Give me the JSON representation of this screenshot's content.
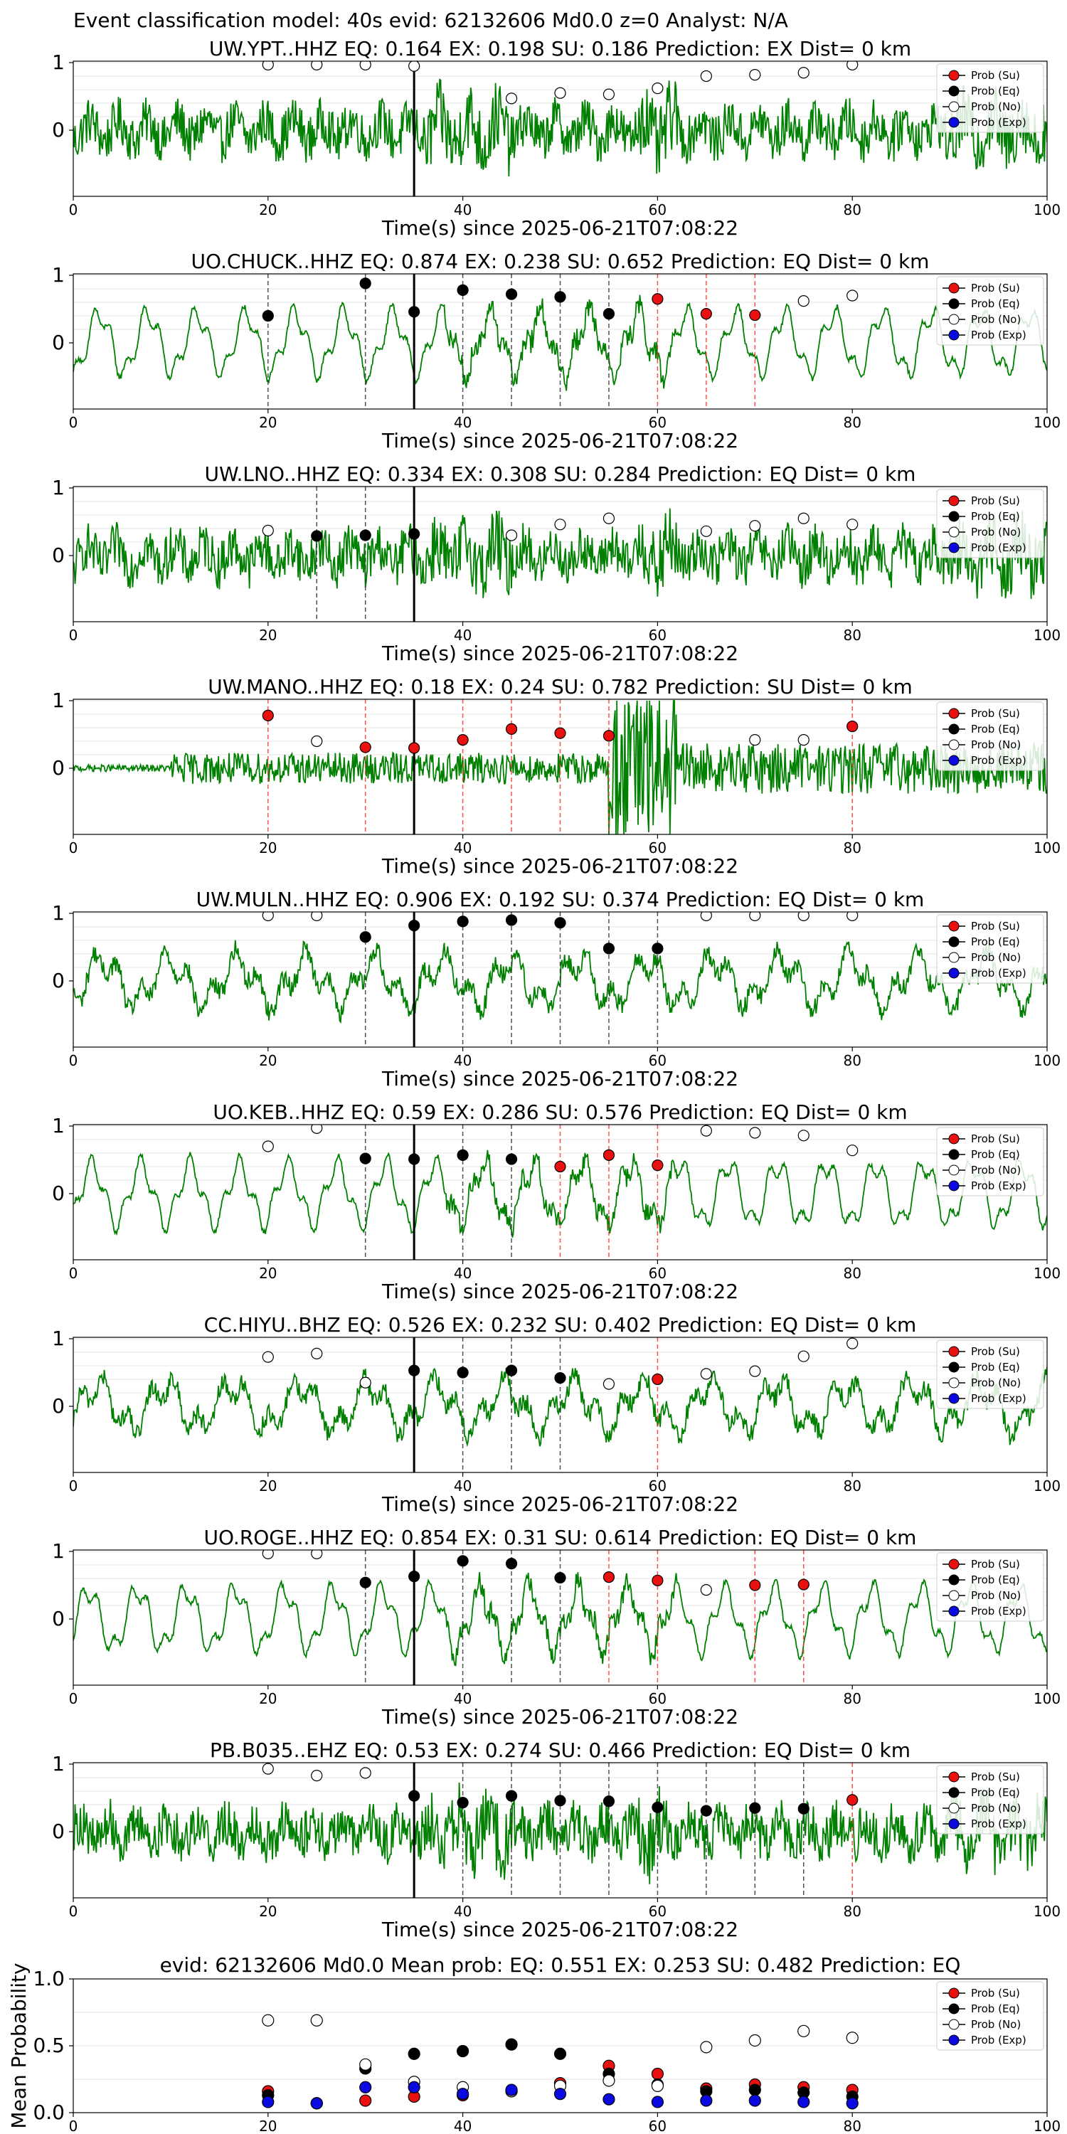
{
  "suptitle": "Event classification model: 40s evid: 62132606 Md0.0 z=0 Analyst: N/A",
  "colors": {
    "trace": "#008000",
    "su": "#e8110f",
    "eq": "#000000",
    "no": "#ffffff",
    "exp": "#0a0ae0",
    "arrival": "#000000"
  },
  "legend_labels": [
    "Prob (Su)",
    "Prob (Eq)",
    "Prob (No)",
    "Prob (Exp)"
  ],
  "chart_data": [
    {
      "type": "line",
      "station": "UW.YPT..HHZ",
      "title": "UW.YPT..HHZ   EQ: 0.164  EX: 0.198  SU: 0.186   Prediction: EX    Dist= 0 km",
      "xlabel": "Time(s) since 2025-06-21T07:08:22",
      "xlim": [
        0,
        100
      ],
      "xticks": [
        "0",
        "20",
        "40",
        "60",
        "80",
        "100"
      ],
      "yticks": [
        "1",
        "0"
      ],
      "arrival_time": 35,
      "style": "noisy",
      "points": [
        {
          "x": 20,
          "cls": "no",
          "p": 0.97
        },
        {
          "x": 25,
          "cls": "no",
          "p": 0.97
        },
        {
          "x": 30,
          "cls": "no",
          "p": 0.97
        },
        {
          "x": 35,
          "cls": "no",
          "p": 0.95
        },
        {
          "x": 45,
          "cls": "no",
          "p": 0.47
        },
        {
          "x": 50,
          "cls": "no",
          "p": 0.55
        },
        {
          "x": 55,
          "cls": "no",
          "p": 0.53
        },
        {
          "x": 60,
          "cls": "no",
          "p": 0.62
        },
        {
          "x": 65,
          "cls": "no",
          "p": 0.8
        },
        {
          "x": 70,
          "cls": "no",
          "p": 0.82
        },
        {
          "x": 75,
          "cls": "no",
          "p": 0.85
        },
        {
          "x": 80,
          "cls": "no",
          "p": 0.97
        }
      ]
    },
    {
      "type": "line",
      "station": "UO.CHUCK..HHZ",
      "title": "UO.CHUCK..HHZ   EQ: 0.874  EX: 0.238  SU: 0.652   Prediction: EQ    Dist= 0 km",
      "xlabel": "Time(s) since 2025-06-21T07:08:22",
      "xlim": [
        0,
        100
      ],
      "xticks": [
        "0",
        "20",
        "40",
        "60",
        "80",
        "100"
      ],
      "yticks": [
        "1",
        "0"
      ],
      "arrival_time": 35,
      "style": "wavy",
      "points": [
        {
          "x": 20,
          "cls": "eq",
          "p": 0.4
        },
        {
          "x": 30,
          "cls": "eq",
          "p": 0.88
        },
        {
          "x": 35,
          "cls": "eq",
          "p": 0.46
        },
        {
          "x": 40,
          "cls": "eq",
          "p": 0.78
        },
        {
          "x": 45,
          "cls": "eq",
          "p": 0.72
        },
        {
          "x": 50,
          "cls": "eq",
          "p": 0.68
        },
        {
          "x": 55,
          "cls": "eq",
          "p": 0.43
        },
        {
          "x": 60,
          "cls": "su",
          "p": 0.65
        },
        {
          "x": 65,
          "cls": "su",
          "p": 0.43
        },
        {
          "x": 70,
          "cls": "su",
          "p": 0.41
        },
        {
          "x": 75,
          "cls": "no",
          "p": 0.62
        },
        {
          "x": 80,
          "cls": "no",
          "p": 0.7
        }
      ]
    },
    {
      "type": "line",
      "station": "UW.LNO..HHZ",
      "title": "UW.LNO..HHZ   EQ: 0.334  EX: 0.308  SU: 0.284   Prediction: EQ    Dist= 0 km",
      "xlabel": "Time(s) since 2025-06-21T07:08:22",
      "xlim": [
        0,
        100
      ],
      "xticks": [
        "0",
        "20",
        "40",
        "60",
        "80",
        "100"
      ],
      "yticks": [
        "1",
        "0"
      ],
      "arrival_time": 35,
      "style": "noisy",
      "points": [
        {
          "x": 20,
          "cls": "no",
          "p": 0.37
        },
        {
          "x": 25,
          "cls": "eq",
          "p": 0.29
        },
        {
          "x": 30,
          "cls": "eq",
          "p": 0.3
        },
        {
          "x": 35,
          "cls": "eq",
          "p": 0.32
        },
        {
          "x": 45,
          "cls": "no",
          "p": 0.3
        },
        {
          "x": 50,
          "cls": "no",
          "p": 0.46
        },
        {
          "x": 55,
          "cls": "no",
          "p": 0.55
        },
        {
          "x": 65,
          "cls": "no",
          "p": 0.36
        },
        {
          "x": 70,
          "cls": "no",
          "p": 0.44
        },
        {
          "x": 75,
          "cls": "no",
          "p": 0.55
        },
        {
          "x": 80,
          "cls": "no",
          "p": 0.46
        }
      ]
    },
    {
      "type": "line",
      "station": "UW.MANO..HHZ",
      "title": "UW.MANO..HHZ   EQ: 0.18  EX: 0.24  SU: 0.782   Prediction: SU    Dist= 0 km",
      "xlabel": "Time(s) since 2025-06-21T07:08:22",
      "xlim": [
        0,
        100
      ],
      "xticks": [
        "0",
        "20",
        "40",
        "60",
        "80",
        "100"
      ],
      "yticks": [
        "1",
        "0"
      ],
      "arrival_time": 35,
      "style": "burst",
      "points": [
        {
          "x": 20,
          "cls": "su",
          "p": 0.78
        },
        {
          "x": 25,
          "cls": "no",
          "p": 0.4
        },
        {
          "x": 30,
          "cls": "su",
          "p": 0.31
        },
        {
          "x": 35,
          "cls": "su",
          "p": 0.3
        },
        {
          "x": 40,
          "cls": "su",
          "p": 0.42
        },
        {
          "x": 45,
          "cls": "su",
          "p": 0.58
        },
        {
          "x": 50,
          "cls": "su",
          "p": 0.52
        },
        {
          "x": 55,
          "cls": "su",
          "p": 0.48
        },
        {
          "x": 70,
          "cls": "no",
          "p": 0.42
        },
        {
          "x": 75,
          "cls": "no",
          "p": 0.42
        },
        {
          "x": 80,
          "cls": "su",
          "p": 0.62
        }
      ]
    },
    {
      "type": "line",
      "station": "UW.MULN..HHZ",
      "title": "UW.MULN..HHZ   EQ: 0.906  EX: 0.192  SU: 0.374   Prediction: EQ    Dist= 0 km",
      "xlabel": "Time(s) since 2025-06-21T07:08:22",
      "xlim": [
        0,
        100
      ],
      "xticks": [
        "0",
        "20",
        "40",
        "60",
        "80",
        "100"
      ],
      "yticks": [
        "1",
        "0"
      ],
      "arrival_time": 35,
      "style": "mixed",
      "points": [
        {
          "x": 20,
          "cls": "no",
          "p": 0.97
        },
        {
          "x": 25,
          "cls": "no",
          "p": 0.97
        },
        {
          "x": 30,
          "cls": "eq",
          "p": 0.65
        },
        {
          "x": 35,
          "cls": "eq",
          "p": 0.82
        },
        {
          "x": 40,
          "cls": "eq",
          "p": 0.88
        },
        {
          "x": 45,
          "cls": "eq",
          "p": 0.9
        },
        {
          "x": 50,
          "cls": "eq",
          "p": 0.86
        },
        {
          "x": 55,
          "cls": "eq",
          "p": 0.48
        },
        {
          "x": 60,
          "cls": "eq",
          "p": 0.48
        },
        {
          "x": 65,
          "cls": "no",
          "p": 0.97
        },
        {
          "x": 70,
          "cls": "no",
          "p": 0.97
        },
        {
          "x": 75,
          "cls": "no",
          "p": 0.97
        },
        {
          "x": 80,
          "cls": "no",
          "p": 0.97
        }
      ]
    },
    {
      "type": "line",
      "station": "UO.KEB..HHZ",
      "title": "UO.KEB..HHZ   EQ: 0.59  EX: 0.286  SU: 0.576   Prediction: EQ    Dist= 0 km",
      "xlabel": "Time(s) since 2025-06-21T07:08:22",
      "xlim": [
        0,
        100
      ],
      "xticks": [
        "0",
        "20",
        "40",
        "60",
        "80",
        "100"
      ],
      "yticks": [
        "1",
        "0"
      ],
      "arrival_time": 35,
      "style": "wavy",
      "points": [
        {
          "x": 20,
          "cls": "no",
          "p": 0.7
        },
        {
          "x": 25,
          "cls": "no",
          "p": 0.97
        },
        {
          "x": 30,
          "cls": "eq",
          "p": 0.52
        },
        {
          "x": 35,
          "cls": "eq",
          "p": 0.51
        },
        {
          "x": 40,
          "cls": "eq",
          "p": 0.57
        },
        {
          "x": 45,
          "cls": "eq",
          "p": 0.51
        },
        {
          "x": 50,
          "cls": "su",
          "p": 0.4
        },
        {
          "x": 55,
          "cls": "su",
          "p": 0.57
        },
        {
          "x": 60,
          "cls": "su",
          "p": 0.42
        },
        {
          "x": 65,
          "cls": "no",
          "p": 0.93
        },
        {
          "x": 70,
          "cls": "no",
          "p": 0.9
        },
        {
          "x": 75,
          "cls": "no",
          "p": 0.86
        },
        {
          "x": 80,
          "cls": "no",
          "p": 0.64
        }
      ]
    },
    {
      "type": "line",
      "station": "CC.HIYU..BHZ",
      "title": "CC.HIYU..BHZ   EQ: 0.526  EX: 0.232  SU: 0.402   Prediction: EQ    Dist= 0 km",
      "xlabel": "Time(s) since 2025-06-21T07:08:22",
      "xlim": [
        0,
        100
      ],
      "xticks": [
        "0",
        "20",
        "40",
        "60",
        "80",
        "100"
      ],
      "yticks": [
        "1",
        "0"
      ],
      "arrival_time": 35,
      "style": "mixed",
      "points": [
        {
          "x": 20,
          "cls": "no",
          "p": 0.73
        },
        {
          "x": 25,
          "cls": "no",
          "p": 0.78
        },
        {
          "x": 30,
          "cls": "no",
          "p": 0.35
        },
        {
          "x": 35,
          "cls": "eq",
          "p": 0.53
        },
        {
          "x": 40,
          "cls": "eq",
          "p": 0.5
        },
        {
          "x": 45,
          "cls": "eq",
          "p": 0.53
        },
        {
          "x": 50,
          "cls": "eq",
          "p": 0.42
        },
        {
          "x": 55,
          "cls": "no",
          "p": 0.33
        },
        {
          "x": 60,
          "cls": "su",
          "p": 0.4
        },
        {
          "x": 65,
          "cls": "no",
          "p": 0.48
        },
        {
          "x": 70,
          "cls": "no",
          "p": 0.52
        },
        {
          "x": 75,
          "cls": "no",
          "p": 0.74
        },
        {
          "x": 80,
          "cls": "no",
          "p": 0.93
        }
      ]
    },
    {
      "type": "line",
      "station": "UO.ROGE..HHZ",
      "title": "UO.ROGE..HHZ   EQ: 0.854  EX: 0.31  SU: 0.614   Prediction: EQ    Dist= 0 km",
      "xlabel": "Time(s) since 2025-06-21T07:08:22",
      "xlim": [
        0,
        100
      ],
      "xticks": [
        "0",
        "20",
        "40",
        "60",
        "80",
        "100"
      ],
      "yticks": [
        "1",
        "0"
      ],
      "arrival_time": 35,
      "style": "wavy",
      "points": [
        {
          "x": 20,
          "cls": "no",
          "p": 0.97
        },
        {
          "x": 25,
          "cls": "no",
          "p": 0.97
        },
        {
          "x": 30,
          "cls": "eq",
          "p": 0.54
        },
        {
          "x": 35,
          "cls": "eq",
          "p": 0.63
        },
        {
          "x": 40,
          "cls": "eq",
          "p": 0.86
        },
        {
          "x": 45,
          "cls": "eq",
          "p": 0.82
        },
        {
          "x": 50,
          "cls": "eq",
          "p": 0.61
        },
        {
          "x": 55,
          "cls": "su",
          "p": 0.62
        },
        {
          "x": 60,
          "cls": "su",
          "p": 0.57
        },
        {
          "x": 65,
          "cls": "no",
          "p": 0.43
        },
        {
          "x": 70,
          "cls": "su",
          "p": 0.5
        },
        {
          "x": 75,
          "cls": "su",
          "p": 0.51
        }
      ]
    },
    {
      "type": "line",
      "station": "PB.B035..EHZ",
      "title": "PB.B035..EHZ   EQ: 0.53  EX: 0.274  SU: 0.466   Prediction: EQ    Dist= 0 km",
      "xlabel": "Time(s) since 2025-06-21T07:08:22",
      "xlim": [
        0,
        100
      ],
      "xticks": [
        "0",
        "20",
        "40",
        "60",
        "80",
        "100"
      ],
      "yticks": [
        "1",
        "0"
      ],
      "arrival_time": 35,
      "style": "noisy",
      "points": [
        {
          "x": 20,
          "cls": "no",
          "p": 0.93
        },
        {
          "x": 25,
          "cls": "no",
          "p": 0.83
        },
        {
          "x": 30,
          "cls": "no",
          "p": 0.87
        },
        {
          "x": 35,
          "cls": "eq",
          "p": 0.53
        },
        {
          "x": 40,
          "cls": "eq",
          "p": 0.43
        },
        {
          "x": 45,
          "cls": "eq",
          "p": 0.53
        },
        {
          "x": 50,
          "cls": "eq",
          "p": 0.46
        },
        {
          "x": 55,
          "cls": "eq",
          "p": 0.45
        },
        {
          "x": 60,
          "cls": "eq",
          "p": 0.36
        },
        {
          "x": 65,
          "cls": "eq",
          "p": 0.31
        },
        {
          "x": 70,
          "cls": "eq",
          "p": 0.35
        },
        {
          "x": 75,
          "cls": "eq",
          "p": 0.34
        },
        {
          "x": 80,
          "cls": "su",
          "p": 0.47
        }
      ]
    },
    {
      "type": "scatter",
      "title": "evid: 62132606  Md0.0    Mean prob:    EQ: 0.551  EX: 0.253  SU: 0.482   Prediction: EQ",
      "ylabel": "Mean Probability",
      "xlim": [
        0,
        100
      ],
      "ylim": [
        0,
        1
      ],
      "xticks": [
        "0",
        "20",
        "40",
        "60",
        "80",
        "100"
      ],
      "yticks": [
        "0.0",
        "0.5",
        "1.0"
      ],
      "x": [
        20,
        25,
        30,
        35,
        40,
        45,
        50,
        55,
        60,
        65,
        70,
        75,
        80
      ],
      "series": [
        {
          "name": "Prob (Su)",
          "cls": "su",
          "values": [
            0.16,
            0.07,
            0.09,
            0.12,
            0.13,
            0.16,
            0.22,
            0.35,
            0.29,
            0.18,
            0.21,
            0.19,
            0.17
          ]
        },
        {
          "name": "Prob (Eq)",
          "cls": "eq",
          "values": [
            0.13,
            0.07,
            0.33,
            0.44,
            0.46,
            0.51,
            0.44,
            0.29,
            0.21,
            0.16,
            0.17,
            0.15,
            0.12
          ]
        },
        {
          "name": "Prob (No)",
          "cls": "no",
          "values": [
            0.69,
            0.69,
            0.36,
            0.23,
            0.19,
            0.16,
            0.2,
            0.24,
            0.2,
            0.49,
            0.54,
            0.61,
            0.56
          ]
        },
        {
          "name": "Prob (Exp)",
          "cls": "exp",
          "values": [
            0.08,
            0.07,
            0.19,
            0.19,
            0.14,
            0.17,
            0.14,
            0.1,
            0.08,
            0.09,
            0.09,
            0.08,
            0.07
          ]
        }
      ]
    }
  ]
}
